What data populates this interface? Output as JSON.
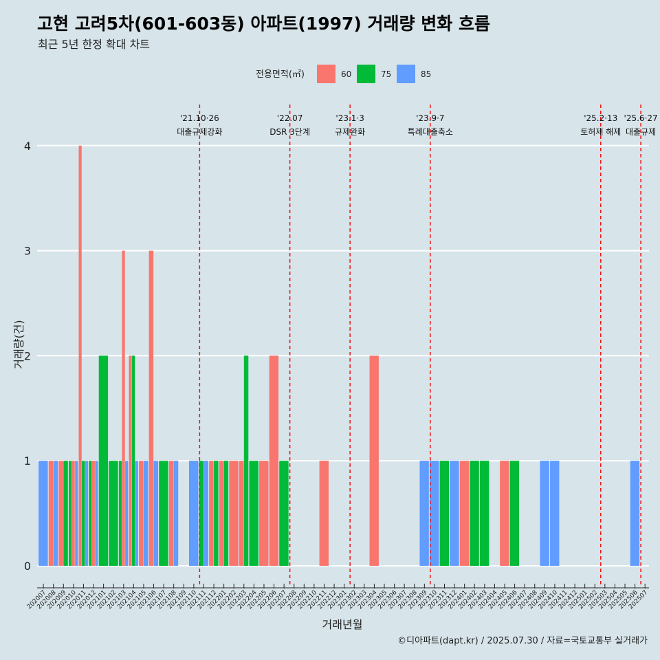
{
  "title": "고현 고려5차(601-603동) 아파트(1997) 거래량 변화 흐름",
  "subtitle": "최근 5년 한정 확대 차트",
  "caption": "©디아파트(dapt.kr) / 2025.07.30 / 자료=국토교통부 실거래가",
  "chart_data": {
    "type": "bar",
    "xlabel": "거래년월",
    "ylabel": "거래량(건)",
    "ylim": [
      0,
      4
    ],
    "yticks": [
      0,
      1,
      2,
      3,
      4
    ],
    "grid": "horizontal",
    "legend": {
      "title": "전용면적(㎡)",
      "placement": "top",
      "items": [
        {
          "name": "60",
          "color": "#F8766D"
        },
        {
          "name": "75",
          "color": "#00BA38"
        },
        {
          "name": "85",
          "color": "#619CFF"
        }
      ]
    },
    "categories": [
      "202007",
      "202008",
      "202009",
      "202010",
      "202011",
      "202012",
      "202101",
      "202102",
      "202103",
      "202104",
      "202105",
      "202106",
      "202107",
      "202108",
      "202109",
      "202110",
      "202111",
      "202112",
      "202201",
      "202202",
      "202203",
      "202204",
      "202205",
      "202206",
      "202207",
      "202208",
      "202209",
      "202210",
      "202211",
      "202212",
      "202301",
      "202302",
      "202303",
      "202304",
      "202305",
      "202306",
      "202307",
      "202308",
      "202309",
      "202310",
      "202311",
      "202312",
      "202401",
      "202402",
      "202403",
      "202404",
      "202405",
      "202406",
      "202407",
      "202408",
      "202409",
      "202410",
      "202411",
      "202412",
      "202501",
      "202502",
      "202503",
      "202504",
      "202505",
      "202506",
      "202507"
    ],
    "transactions": [
      {
        "month": "202007",
        "parts": [
          {
            "area": "85",
            "count": 1
          }
        ]
      },
      {
        "month": "202008",
        "parts": [
          {
            "area": "60",
            "count": 1
          },
          {
            "area": "85",
            "count": 1
          }
        ]
      },
      {
        "month": "202009",
        "parts": [
          {
            "area": "60",
            "count": 1
          },
          {
            "area": "75",
            "count": 1
          }
        ]
      },
      {
        "month": "202010",
        "parts": [
          {
            "area": "75",
            "count": 1
          },
          {
            "area": "60",
            "count": 1
          },
          {
            "area": "85",
            "count": 1
          }
        ]
      },
      {
        "month": "202011",
        "parts": [
          {
            "area": "60",
            "count": 4
          },
          {
            "area": "75",
            "count": 1
          },
          {
            "area": "85",
            "count": 1
          }
        ]
      },
      {
        "month": "202012",
        "parts": [
          {
            "area": "75",
            "count": 1
          },
          {
            "area": "60",
            "count": 1
          },
          {
            "area": "85",
            "count": 1
          }
        ]
      },
      {
        "month": "202101",
        "parts": [
          {
            "area": "75",
            "count": 2
          }
        ]
      },
      {
        "month": "202102",
        "parts": [
          {
            "area": "75",
            "count": 1
          }
        ]
      },
      {
        "month": "202103",
        "parts": [
          {
            "area": "75",
            "count": 1
          },
          {
            "area": "60",
            "count": 3
          },
          {
            "area": "85",
            "count": 1
          }
        ]
      },
      {
        "month": "202104",
        "parts": [
          {
            "area": "60",
            "count": 2
          },
          {
            "area": "75",
            "count": 2
          },
          {
            "area": "85",
            "count": 1
          }
        ]
      },
      {
        "month": "202105",
        "parts": [
          {
            "area": "60",
            "count": 1
          },
          {
            "area": "85",
            "count": 1
          }
        ]
      },
      {
        "month": "202106",
        "parts": [
          {
            "area": "60",
            "count": 3
          },
          {
            "area": "85",
            "count": 1
          }
        ]
      },
      {
        "month": "202107",
        "parts": [
          {
            "area": "75",
            "count": 1
          }
        ]
      },
      {
        "month": "202108",
        "parts": [
          {
            "area": "60",
            "count": 1
          },
          {
            "area": "85",
            "count": 1
          }
        ]
      },
      {
        "month": "202109",
        "parts": []
      },
      {
        "month": "202110",
        "parts": [
          {
            "area": "85",
            "count": 1
          }
        ]
      },
      {
        "month": "202111",
        "parts": [
          {
            "area": "75",
            "count": 1
          },
          {
            "area": "85",
            "count": 1
          }
        ]
      },
      {
        "month": "202112",
        "parts": [
          {
            "area": "60",
            "count": 1
          },
          {
            "area": "75",
            "count": 1
          }
        ]
      },
      {
        "month": "202201",
        "parts": [
          {
            "area": "60",
            "count": 1
          },
          {
            "area": "75",
            "count": 1
          }
        ]
      },
      {
        "month": "202202",
        "parts": [
          {
            "area": "60",
            "count": 1
          }
        ]
      },
      {
        "month": "202203",
        "parts": [
          {
            "area": "60",
            "count": 1
          },
          {
            "area": "75",
            "count": 2
          }
        ]
      },
      {
        "month": "202204",
        "parts": [
          {
            "area": "75",
            "count": 1
          }
        ]
      },
      {
        "month": "202205",
        "parts": [
          {
            "area": "60",
            "count": 1
          }
        ]
      },
      {
        "month": "202206",
        "parts": [
          {
            "area": "60",
            "count": 2
          }
        ]
      },
      {
        "month": "202207",
        "parts": [
          {
            "area": "75",
            "count": 1
          }
        ]
      },
      {
        "month": "202208",
        "parts": []
      },
      {
        "month": "202209",
        "parts": []
      },
      {
        "month": "202210",
        "parts": []
      },
      {
        "month": "202211",
        "parts": [
          {
            "area": "60",
            "count": 1
          }
        ]
      },
      {
        "month": "202212",
        "parts": []
      },
      {
        "month": "202301",
        "parts": []
      },
      {
        "month": "202302",
        "parts": []
      },
      {
        "month": "202303",
        "parts": []
      },
      {
        "month": "202304",
        "parts": [
          {
            "area": "60",
            "count": 2
          }
        ]
      },
      {
        "month": "202305",
        "parts": []
      },
      {
        "month": "202306",
        "parts": []
      },
      {
        "month": "202307",
        "parts": []
      },
      {
        "month": "202308",
        "parts": []
      },
      {
        "month": "202309",
        "parts": [
          {
            "area": "85",
            "count": 1
          }
        ]
      },
      {
        "month": "202310",
        "parts": [
          {
            "area": "85",
            "count": 1
          }
        ]
      },
      {
        "month": "202311",
        "parts": [
          {
            "area": "75",
            "count": 1
          }
        ]
      },
      {
        "month": "202312",
        "parts": [
          {
            "area": "85",
            "count": 1
          }
        ]
      },
      {
        "month": "202401",
        "parts": [
          {
            "area": "60",
            "count": 1
          }
        ]
      },
      {
        "month": "202402",
        "parts": [
          {
            "area": "75",
            "count": 1
          }
        ]
      },
      {
        "month": "202403",
        "parts": [
          {
            "area": "75",
            "count": 1
          }
        ]
      },
      {
        "month": "202404",
        "parts": []
      },
      {
        "month": "202405",
        "parts": [
          {
            "area": "60",
            "count": 1
          }
        ]
      },
      {
        "month": "202406",
        "parts": [
          {
            "area": "75",
            "count": 1
          }
        ]
      },
      {
        "month": "202407",
        "parts": []
      },
      {
        "month": "202408",
        "parts": []
      },
      {
        "month": "202409",
        "parts": [
          {
            "area": "85",
            "count": 1
          }
        ]
      },
      {
        "month": "202410",
        "parts": [
          {
            "area": "85",
            "count": 1
          }
        ]
      },
      {
        "month": "202411",
        "parts": []
      },
      {
        "month": "202412",
        "parts": []
      },
      {
        "month": "202501",
        "parts": []
      },
      {
        "month": "202502",
        "parts": []
      },
      {
        "month": "202503",
        "parts": []
      },
      {
        "month": "202504",
        "parts": []
      },
      {
        "month": "202505",
        "parts": []
      },
      {
        "month": "202506",
        "parts": [
          {
            "area": "85",
            "count": 1
          }
        ]
      },
      {
        "month": "202507",
        "parts": []
      }
    ],
    "events": [
      {
        "month": "202110",
        "date": "'21.10·26",
        "label": "대출규제강화"
      },
      {
        "month": "202207",
        "date": "'22.07",
        "label": "DSR 3단계"
      },
      {
        "month": "202301",
        "date": "'23.1·3",
        "label": "규제완화"
      },
      {
        "month": "202309",
        "date": "'23.9·7",
        "label": "특례대출축소"
      },
      {
        "month": "202502",
        "date": "'25.2·13",
        "label": "토허제 해제"
      },
      {
        "month": "202506",
        "date": "'25.6·27",
        "label": "대출규제"
      }
    ]
  }
}
